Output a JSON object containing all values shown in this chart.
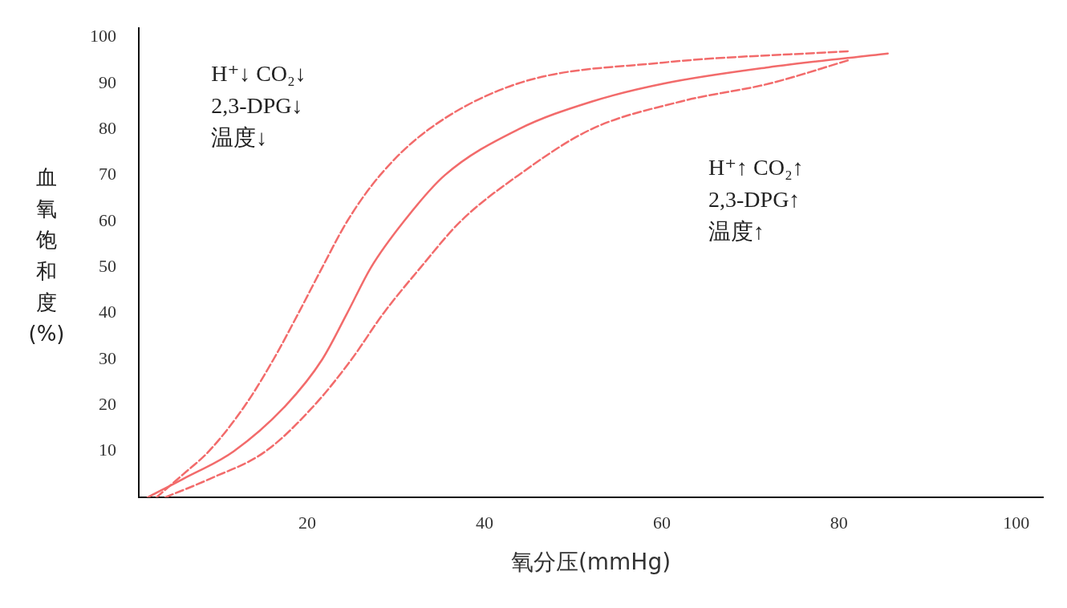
{
  "chart_data": {
    "type": "line",
    "xlabel": "氧分压(mmHg)",
    "ylabel": "血氧饱和度(%)",
    "xlim": [
      1,
      103
    ],
    "xticks": [
      20,
      40,
      60,
      80,
      100
    ],
    "ylim": [
      0,
      102
    ],
    "yticks": [
      10,
      20,
      30,
      40,
      50,
      60,
      70,
      80,
      90,
      100
    ],
    "grid": false,
    "legend": false,
    "marker": "none",
    "annotations": [
      "H⁺↓ CO₂↓\n2,3-DPG↓\n温度↓",
      "H⁺↑ CO₂↑\n2,3-DPG↑\n温度↑"
    ],
    "series": [
      {
        "color": "#f26b6b",
        "line_style": "solid",
        "x": [
          2,
          6,
          11.7,
          17.6,
          21.7,
          24.5,
          27.2,
          30.9,
          35.5,
          43.8,
          52,
          60.3,
          72,
          85.5
        ],
        "values": [
          0,
          4,
          10,
          20,
          30,
          40,
          50,
          60,
          70,
          80,
          86,
          90,
          93.5,
          96.5
        ]
      },
      {
        "color": "#f26b6b",
        "line_style": "dashed",
        "x": [
          3,
          6,
          8.9,
          13,
          16.2,
          19,
          21.7,
          24.5,
          28.2,
          33.7,
          43.8,
          60,
          81
        ],
        "values": [
          0,
          5,
          10,
          20,
          30,
          40,
          50,
          60,
          70,
          80,
          90,
          94.5,
          97
        ]
      },
      {
        "color": "#f26b6b",
        "line_style": "dashed",
        "x": [
          4,
          9,
          15.3,
          20.8,
          25,
          28.6,
          32.8,
          37.3,
          43.8,
          52,
          62,
          72.2,
          81
        ],
        "values": [
          0,
          4,
          10,
          20,
          30,
          40,
          50,
          60,
          70,
          80,
          86,
          90,
          95
        ]
      }
    ]
  }
}
